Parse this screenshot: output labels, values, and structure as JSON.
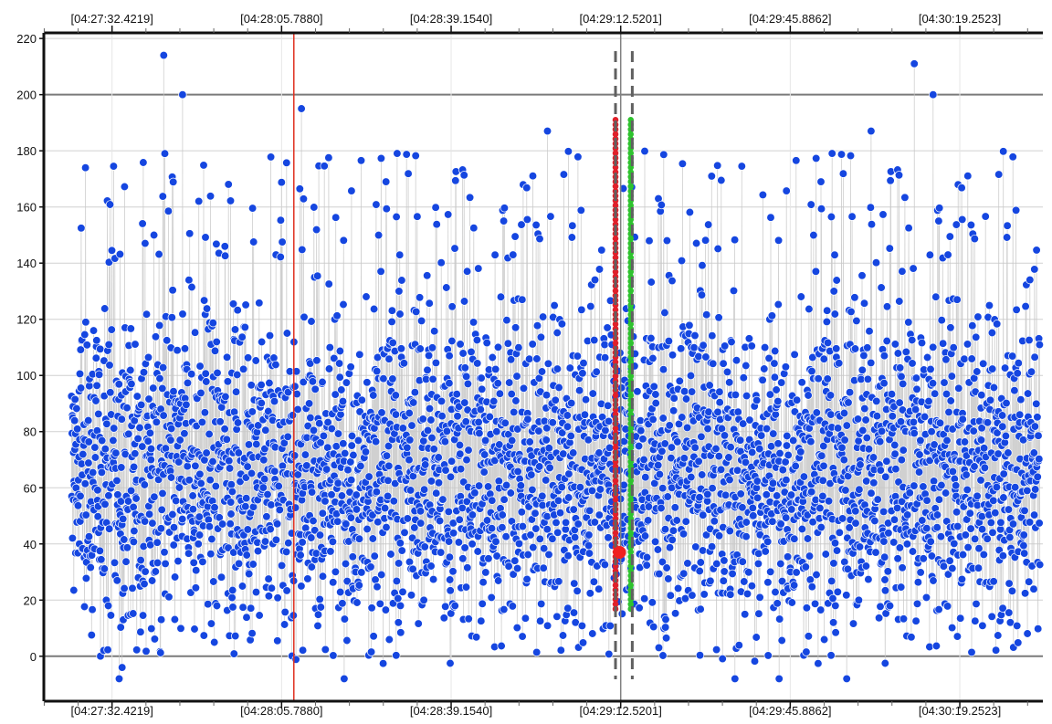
{
  "chart_data": {
    "type": "scatter",
    "title": "",
    "xlabel": "",
    "ylabel": "",
    "ylim": [
      -16,
      222
    ],
    "xlim": [
      "04:27:19.0",
      "04:30:35.6"
    ],
    "x_tick_labels": [
      "[04:27:32.4219]",
      "[04:28:05.7880]",
      "[04:28:39.1540]",
      "[04:29:12.5201]",
      "[04:29:45.8862]",
      "[04:30:19.2523]"
    ],
    "y_tick_labels": [
      "0",
      "20",
      "40",
      "60",
      "80",
      "100",
      "120",
      "140",
      "160",
      "180",
      "200",
      "220"
    ],
    "y_ticks": [
      0,
      20,
      40,
      60,
      80,
      100,
      120,
      140,
      160,
      180,
      200,
      220
    ],
    "major_gridlines_y": [
      0,
      200
    ],
    "grid": true,
    "legend": "none",
    "series": [
      {
        "color": "#1546e0",
        "marker": "circle",
        "connector_color": "#c8c8c8",
        "x_start": "04:27:24.4",
        "x_end": "04:30:35.0",
        "sample_interval_s": 0.05,
        "point_count": 3820,
        "range": [
          -8,
          214
        ],
        "typical_range": [
          20,
          120
        ],
        "highlight_points": [
          {
            "x": "04:27:34.4",
            "y": -4
          },
          {
            "x": "04:27:42.6",
            "y": 214
          },
          {
            "x": "04:27:46.3",
            "y": 200
          },
          {
            "x": "04:28:09.7",
            "y": 195
          },
          {
            "x": "04:28:58.1",
            "y": 187
          },
          {
            "x": "04:30:01.8",
            "y": 187
          },
          {
            "x": "04:30:10.3",
            "y": 211
          },
          {
            "x": "04:30:14.0",
            "y": 200
          },
          {
            "x": "04:29:57.0",
            "y": -8
          },
          {
            "x": "04:29:35.0",
            "y": -8
          }
        ]
      }
    ],
    "annotations": [
      {
        "kind": "vertical-line",
        "x": "04:28:08.2",
        "color": "#e03020"
      },
      {
        "kind": "vertical-line",
        "x": "04:29:12.5201",
        "color": "#808080"
      },
      {
        "kind": "dashed-vertical-line",
        "x": "04:29:11.5",
        "color": "#606060"
      },
      {
        "kind": "dashed-vertical-line",
        "x": "04:29:14.8",
        "color": "#606060"
      },
      {
        "kind": "marker-column",
        "x": "04:29:11.5",
        "color": "#e0202a",
        "y_from": 16,
        "y_to": 191
      },
      {
        "kind": "marker-column",
        "x": "04:29:14.5",
        "color": "#2ec22e",
        "y_from": 16,
        "y_to": 191
      },
      {
        "kind": "point",
        "x": "04:29:12.3",
        "y": 37,
        "color": "#f02020"
      }
    ],
    "colors": {
      "points": "#1546e0",
      "connector": "#c8c8c8",
      "gridline": "#d0d0d0",
      "major_gridline": "#7a7a7a",
      "cursor_red": "#e03020",
      "marker_red": "#e0202a",
      "marker_green": "#2ec22e"
    }
  }
}
